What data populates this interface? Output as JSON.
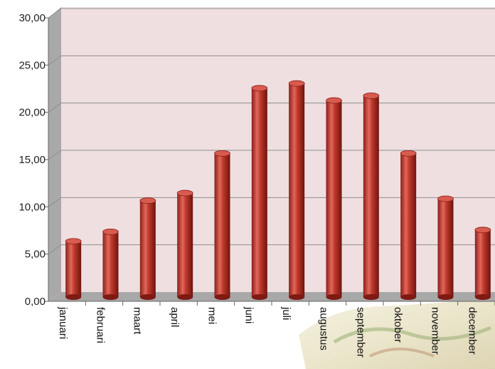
{
  "chart_data": {
    "type": "bar",
    "title": "",
    "xlabel": "",
    "ylabel": "",
    "categories": [
      "januari",
      "februari",
      "maart",
      "april",
      "mei",
      "juni",
      "juli",
      "augustus",
      "september",
      "oktober",
      "november",
      "december"
    ],
    "values": [
      5.9,
      6.9,
      10.2,
      11.0,
      15.2,
      22.1,
      22.6,
      20.8,
      21.3,
      15.2,
      10.4,
      7.1
    ],
    "ylim": [
      0,
      30
    ],
    "yticks": [
      "0,00",
      "5,00",
      "10,00",
      "15,00",
      "20,00",
      "25,00",
      "30,00"
    ],
    "grid": true,
    "legend": "none",
    "colors": {
      "bar": "#c0392b",
      "bar_dark": "#7e1a14",
      "bar_light": "#e57a6e",
      "plot_bg": "#f0dfe0",
      "wall_side": "#a9a9a9",
      "floor": "#a8a8a8",
      "grid": "#8f8f8f"
    }
  }
}
